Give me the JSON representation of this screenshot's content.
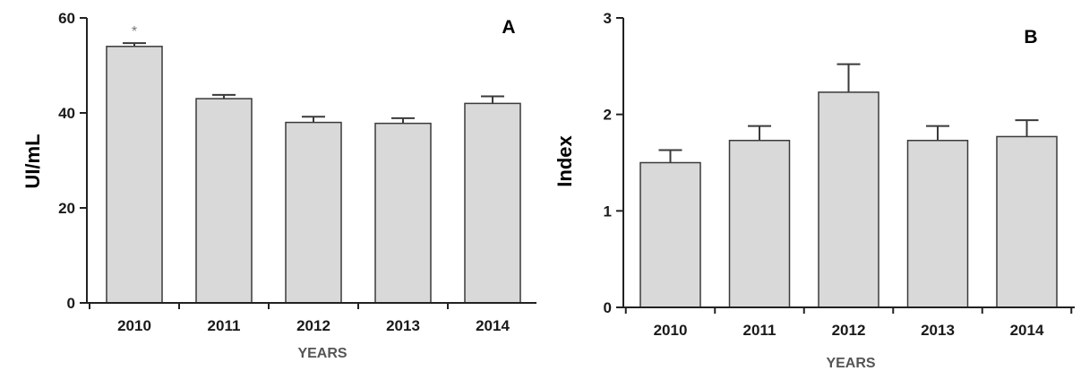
{
  "chart_data": [
    {
      "type": "bar",
      "panel_label": "A",
      "categories": [
        "2010",
        "2011",
        "2012",
        "2013",
        "2014"
      ],
      "values": [
        54,
        43,
        38,
        37.8,
        42
      ],
      "errors": [
        0.7,
        0.8,
        1.2,
        1.1,
        1.5
      ],
      "annotations": [
        "*",
        "",
        "",
        "",
        ""
      ],
      "xlabel": "YEARS",
      "ylabel": "UI/mL",
      "ylim": [
        0,
        60
      ],
      "yticks": [
        "0",
        "20",
        "40",
        "60"
      ],
      "grid": false,
      "bar_color": "#d9d9d9"
    },
    {
      "type": "bar",
      "panel_label": "B",
      "categories": [
        "2010",
        "2011",
        "2012",
        "2013",
        "2014"
      ],
      "values": [
        1.5,
        1.73,
        2.23,
        1.73,
        1.77
      ],
      "errors": [
        0.13,
        0.15,
        0.29,
        0.15,
        0.17
      ],
      "xlabel": "YEARS",
      "ylabel": "Index",
      "ylim": [
        0,
        3
      ],
      "yticks": [
        "0",
        "1",
        "2",
        "3"
      ],
      "grid": false,
      "bar_color": "#d9d9d9"
    }
  ]
}
